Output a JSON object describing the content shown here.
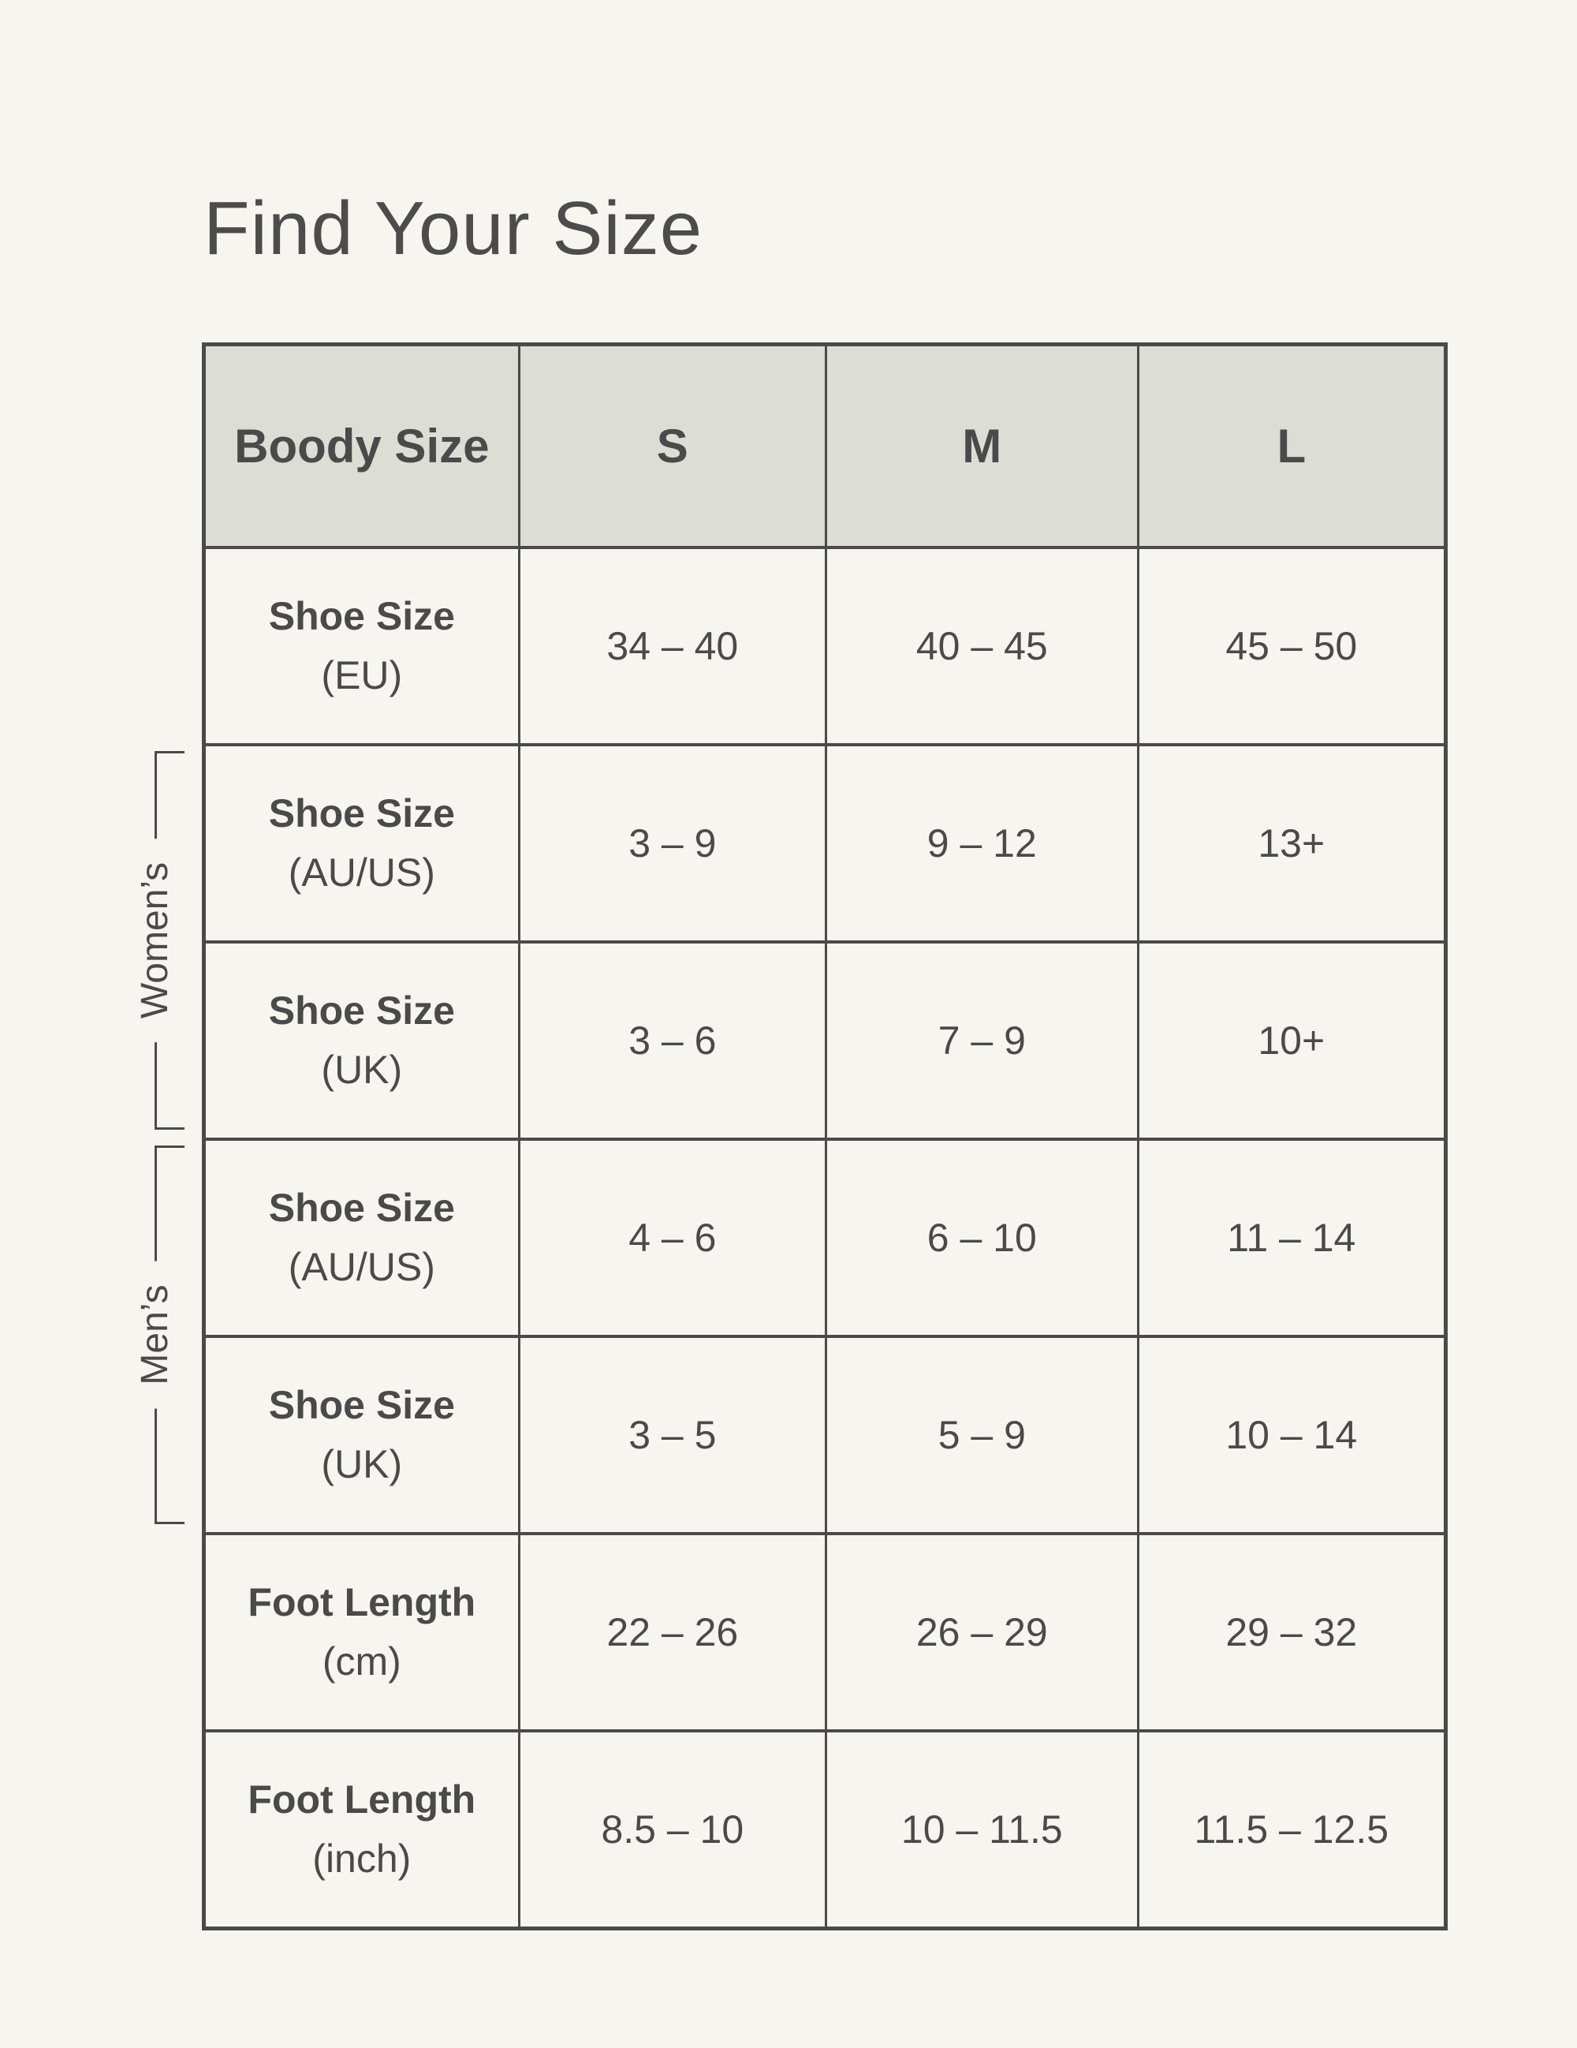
{
  "page": {
    "title": "Find Your Size",
    "background_color": "#f6f5ef",
    "text_color": "#4a4a4a",
    "border_color": "#4a4a4a",
    "header_bg_color": "#dcddd5"
  },
  "table": {
    "header": {
      "col0": "Boody Size",
      "cols": [
        "S",
        "M",
        "L"
      ]
    },
    "rows": [
      {
        "label": "Shoe Size",
        "sub": "(EU)",
        "values": [
          "34 – 40",
          "40 – 45",
          "45 – 50"
        ]
      },
      {
        "label": "Shoe Size",
        "sub": "(AU/US)",
        "values": [
          "3 – 9",
          "9 – 12",
          "13+"
        ]
      },
      {
        "label": "Shoe Size",
        "sub": "(UK)",
        "values": [
          "3 – 6",
          "7 – 9",
          "10+"
        ]
      },
      {
        "label": "Shoe Size",
        "sub": "(AU/US)",
        "values": [
          "4 – 6",
          "6 – 10",
          "11 – 14"
        ]
      },
      {
        "label": "Shoe Size",
        "sub": "(UK)",
        "values": [
          "3 – 5",
          "5 – 9",
          "10 – 14"
        ]
      },
      {
        "label": "Foot Length",
        "sub": "(cm)",
        "values": [
          "22 – 26",
          "26 – 29",
          "29 – 32"
        ]
      },
      {
        "label": "Foot Length",
        "sub": "(inch)",
        "values": [
          "8.5 – 10",
          "10 – 11.5",
          "11.5 – 12.5"
        ]
      }
    ],
    "groups": [
      {
        "id": "womens",
        "label": "Women’s",
        "spans_rows": "Shoe Size (AU/US) – Shoe Size (UK)"
      },
      {
        "id": "mens",
        "label": "Men’s",
        "spans_rows": "Shoe Size (AU/US) – Shoe Size (UK)"
      }
    ]
  }
}
